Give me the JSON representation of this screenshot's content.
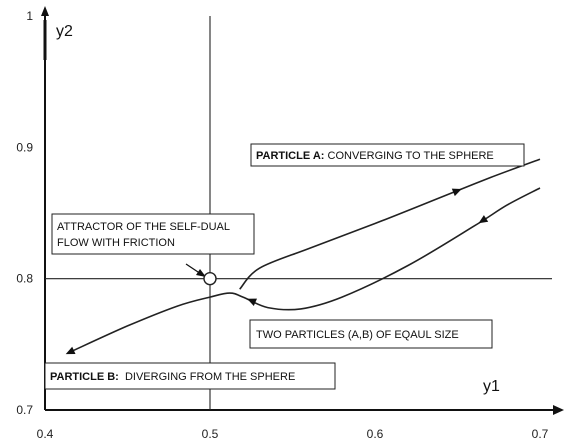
{
  "chart_data": {
    "type": "line",
    "xlabel": "y1",
    "ylabel": "y2",
    "xlim": [
      0.4,
      0.7
    ],
    "ylim": [
      0.7,
      1.0
    ],
    "x_ticks": [
      "0.4",
      "0.5",
      "0.6",
      "0.7"
    ],
    "y_ticks": [
      "0.7",
      "0.8",
      "0.9",
      "1"
    ],
    "reference_lines": {
      "vertical_x": 0.5,
      "horizontal_y": 0.8
    },
    "attractor_point": {
      "x": 0.5,
      "y": 0.8
    },
    "curves": [
      {
        "id": "particle-a",
        "points": [
          [
            0.518,
            0.792
          ],
          [
            0.53,
            0.808
          ],
          [
            0.56,
            0.823
          ],
          [
            0.6,
            0.842
          ],
          [
            0.64,
            0.862
          ],
          [
            0.67,
            0.877
          ],
          [
            0.7,
            0.891
          ]
        ],
        "arrows_at": [
          0.65
        ]
      },
      {
        "id": "loop-and-b",
        "points": [
          [
            0.7,
            0.869
          ],
          [
            0.68,
            0.856
          ],
          [
            0.66,
            0.84
          ],
          [
            0.62,
            0.81
          ],
          [
            0.58,
            0.786
          ],
          [
            0.555,
            0.777
          ],
          [
            0.535,
            0.778
          ],
          [
            0.52,
            0.786
          ],
          [
            0.512,
            0.789
          ],
          [
            0.5,
            0.786
          ],
          [
            0.48,
            0.779
          ],
          [
            0.45,
            0.764
          ],
          [
            0.415,
            0.744
          ]
        ],
        "arrows_at": [
          0.665,
          0.525,
          0.41
        ]
      }
    ],
    "annotations": [
      {
        "id": "particle-a-label",
        "bold": "PARTICLE A:",
        "text": " CONVERGING TO THE SPHERE",
        "boxed": true
      },
      {
        "id": "attractor-label",
        "lines": [
          "ATTRACTOR OF THE SELF-DUAL",
          "FLOW WITH FRICTION"
        ],
        "boxed": true
      },
      {
        "id": "two-particles-label",
        "text": "TWO PARTICLES (A,B) OF EQAUL SIZE",
        "boxed": true
      },
      {
        "id": "particle-b-label",
        "bold": "PARTICLE B:",
        "text": "  DIVERGING FROM THE SPHERE",
        "boxed": true
      }
    ]
  }
}
